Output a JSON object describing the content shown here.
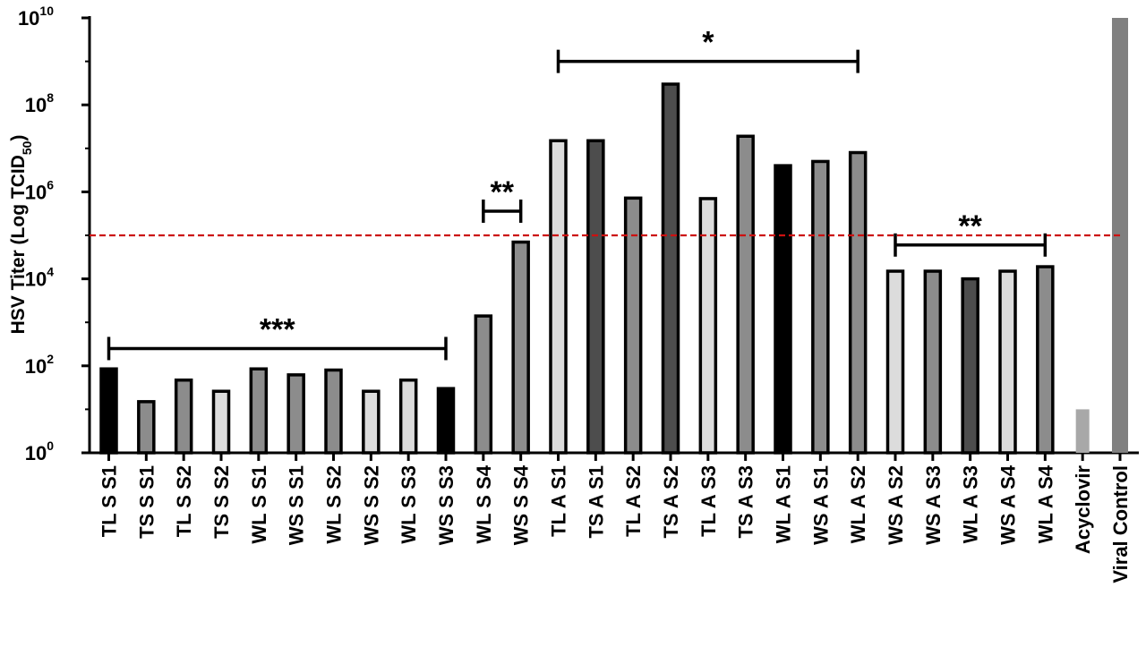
{
  "chart_data": {
    "type": "bar",
    "ylabel": "HSV Titer (Log TCID",
    "ylabel_subscript": "50",
    "ylabel_suffix": ")",
    "yscale": "log10",
    "ylim": [
      1,
      10000000000
    ],
    "y_ticks": [
      {
        "base": "10",
        "exp": "0"
      },
      {
        "base": "10",
        "exp": "2"
      },
      {
        "base": "10",
        "exp": "4"
      },
      {
        "base": "10",
        "exp": "6"
      },
      {
        "base": "10",
        "exp": "8"
      },
      {
        "base": "10",
        "exp": "10"
      }
    ],
    "categories": [
      "TL S S1",
      "TS S S1",
      "TL S S2",
      "TS S S2",
      "WL S S1",
      "WS S S1",
      "WL S S2",
      "WS S S2",
      "WL S S3",
      "WS S S3",
      "WL S S4",
      "WS S S4",
      "TL A S1",
      "TS A S1",
      "TL A S2",
      "TS A S2",
      "TL A S3",
      "TS A S3",
      "WL A S1",
      "WS A S1",
      "WL A S2",
      "WS A S2",
      "WS A S3",
      "WL A S3",
      "WS A S4",
      "WL A S4",
      "Acyclovir",
      "Viral Control"
    ],
    "values": [
      85,
      15,
      47,
      26,
      85,
      62,
      80,
      26,
      47,
      30,
      1400,
      70000,
      15000000,
      15000000,
      720000,
      300000000,
      700000,
      19000000,
      4000000,
      5000000,
      8000000,
      15000,
      15000,
      10000,
      15000,
      19000,
      10,
      10000000000
    ],
    "bar_styles": [
      "black",
      "gray",
      "gray",
      "light",
      "gray",
      "gray",
      "gray",
      "light",
      "light",
      "black",
      "gray",
      "gray",
      "light",
      "dark",
      "gray",
      "dark",
      "light",
      "gray",
      "black",
      "gray",
      "gray",
      "light",
      "gray",
      "dark",
      "light",
      "gray",
      "solid-light",
      "solid-gray"
    ],
    "colors": {
      "black": "#000000",
      "gray": "#8c8c8c",
      "dark": "#4d4d4d",
      "light": "#dcdcdc",
      "outline": "#000000",
      "solid-light": "#a8a8a8",
      "solid-gray": "#808080",
      "threshold": "#cc1111"
    },
    "threshold_line": {
      "value": 100000,
      "style": "dashed"
    },
    "significance": [
      {
        "from": "TL S S1",
        "to": "WS S S3",
        "y_value": 250,
        "label": "***"
      },
      {
        "from": "WL S S4",
        "to": "WS S S4",
        "y_value": 360000,
        "label": "**"
      },
      {
        "from": "TL A S1",
        "to": "WL A S2",
        "y_value": 1000000000,
        "label": "*"
      },
      {
        "from": "WS A S2",
        "to": "WL A S4",
        "y_value": 60000,
        "label": "**"
      }
    ],
    "grid": false,
    "legend": "none"
  }
}
